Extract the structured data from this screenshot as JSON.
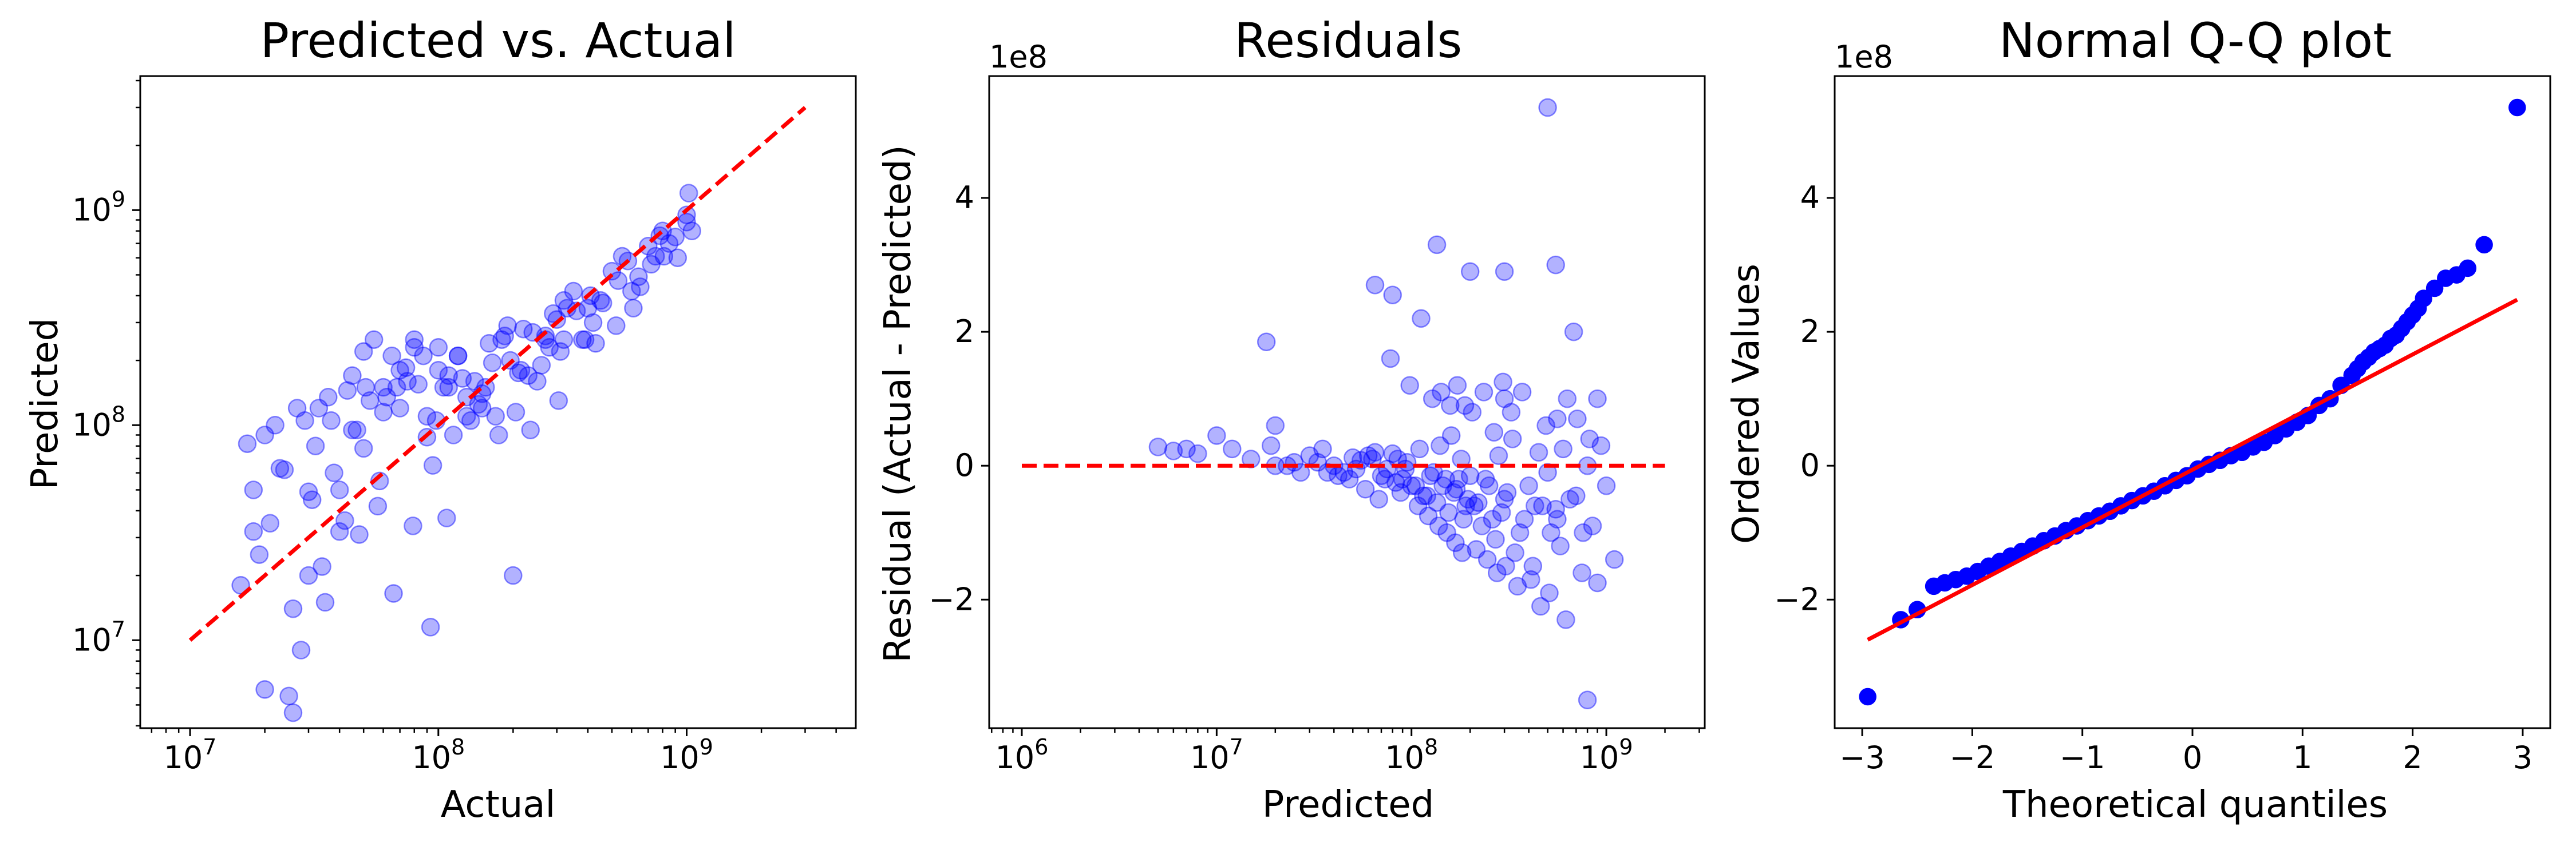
{
  "colors": {
    "points": "#0000ff",
    "reference_line": "#ff0000",
    "axes": "#000000",
    "background": "#ffffff"
  },
  "chart_data": [
    {
      "type": "scatter",
      "title": "Predicted vs. Actual",
      "xlabel": "Actual",
      "ylabel": "Predicted",
      "xscale": "log",
      "yscale": "log",
      "xlim": [
        6300000.0,
        4800000000.0
      ],
      "ylim": [
        3900000.0,
        4200000000.0
      ],
      "xticks": [
        {
          "value": 10000000.0,
          "base": "10",
          "exp": "7"
        },
        {
          "value": 100000000.0,
          "base": "10",
          "exp": "8"
        },
        {
          "value": 1000000000.0,
          "base": "10",
          "exp": "9"
        }
      ],
      "yticks": [
        {
          "value": 10000000.0,
          "base": "10",
          "exp": "7"
        },
        {
          "value": 100000000.0,
          "base": "10",
          "exp": "8"
        },
        {
          "value": 1000000000.0,
          "base": "10",
          "exp": "9"
        }
      ],
      "reference_line": {
        "style": "dashed",
        "x": [
          10000000.0,
          3000000000.0
        ],
        "y": [
          10000000.0,
          3000000000.0
        ]
      },
      "grid": false,
      "series": [
        {
          "marker_alpha": 0.3,
          "x": [
            16000000.0,
            17000000.0,
            18000000.0,
            19000000.0,
            20000000.0,
            18000000.0,
            22000000.0,
            25000000.0,
            28000000.0,
            30000000.0,
            35000000.0,
            40000000.0,
            45000000.0,
            50000000.0,
            27000000.0,
            32000000.0,
            26000000.0,
            42000000.0,
            60000000.0,
            24000000.0,
            38000000.0,
            55000000.0,
            70000000.0,
            21000000.0,
            48000000.0,
            90000000.0,
            33000000.0,
            65000000.0,
            80000000.0,
            100000000.0,
            120000000.0,
            150000000.0,
            180000000.0,
            200000000.0,
            250000000.0,
            300000000.0,
            350000000.0,
            400000000.0,
            500000000.0,
            600000000.0,
            700000000.0,
            800000000.0,
            900000000.0,
            1000000000.0,
            45000000.0,
            58000000.0,
            75000000.0,
            95000000.0,
            110000000.0,
            130000000.0,
            160000000.0,
            220000000.0,
            280000000.0,
            320000000.0,
            420000000.0,
            550000000.0,
            650000000.0,
            750000000.0,
            850000000.0,
            1000000000.0,
            30000000.0,
            40000000.0,
            50000000.0,
            60000000.0,
            70000000.0,
            80000000.0,
            90000000.0,
            110000000.0,
            130000000.0,
            150000000.0,
            170000000.0,
            190000000.0,
            210000000.0,
            240000000.0,
            270000000.0,
            310000000.0,
            360000000.0,
            410000000.0,
            460000000.0,
            520000000.0,
            580000000.0,
            640000000.0,
            720000000.0,
            810000000.0,
            920000000.0,
            1050000000.0,
            23000000.0,
            29000000.0,
            36000000.0,
            43000000.0,
            51000000.0,
            62000000.0,
            74000000.0,
            87000000.0,
            100000000.0,
            120000000.0,
            140000000.0,
            165000000.0,
            195000000.0,
            230000000.0,
            270000000.0,
            320000000.0,
            380000000.0,
            450000000.0,
            155000000.0,
            205000000.0,
            105000000.0,
            260000000.0,
            330000000.0,
            125000000.0,
            185000000.0,
            98000000.0,
            37000000.0,
            53000000.0,
            68000000.0,
            83000000.0,
            115000000.0,
            145000000.0,
            215000000.0,
            290000000.0,
            390000000.0,
            530000000.0,
            780000000.0,
            20000000.0,
            26000000.0,
            31000000.0,
            34000000.0,
            47000000.0,
            57000000.0,
            66000000.0,
            79000000.0,
            93000000.0,
            108000000.0,
            135000000.0,
            175000000.0,
            235000000.0,
            305000000.0,
            430000000.0,
            610000000.0,
            1020000000.0
          ],
          "y": [
            18000000.0,
            82000000.0,
            50000000.0,
            25000000.0,
            90000000.0,
            32000000.0,
            100000000.0,
            5500000.0,
            9000000.0,
            20000000.0,
            15000000.0,
            50000000.0,
            170000000.0,
            220000000.0,
            120000000.0,
            80000000.0,
            14000000.0,
            36000000.0,
            150000000.0,
            62000000.0,
            60000000.0,
            250000000.0,
            120000000.0,
            35000000.0,
            31000000.0,
            88000000.0,
            120000000.0,
            210000000.0,
            230000000.0,
            180000000.0,
            210000000.0,
            140000000.0,
            250000000.0,
            20000000.0,
            160000000.0,
            310000000.0,
            420000000.0,
            350000000.0,
            520000000.0,
            420000000.0,
            680000000.0,
            800000000.0,
            750000000.0,
            950000000.0,
            95000000.0,
            55000000.0,
            160000000.0,
            65000000.0,
            170000000.0,
            110000000.0,
            240000000.0,
            280000000.0,
            230000000.0,
            380000000.0,
            300000000.0,
            610000000.0,
            440000000.0,
            610000000.0,
            700000000.0,
            880000000.0,
            49000000.0,
            32000000.0,
            78000000.0,
            115000000.0,
            180000000.0,
            250000000.0,
            110000000.0,
            150000000.0,
            135000000.0,
            120000000.0,
            110000000.0,
            290000000.0,
            175000000.0,
            270000000.0,
            250000000.0,
            220000000.0,
            340000000.0,
            400000000.0,
            370000000.0,
            290000000.0,
            580000000.0,
            490000000.0,
            560000000.0,
            610000000.0,
            600000000.0,
            800000000.0,
            63000000.0,
            105000000.0,
            135000000.0,
            145000000.0,
            150000000.0,
            135000000.0,
            185000000.0,
            210000000.0,
            230000000.0,
            210000000.0,
            160000000.0,
            195000000.0,
            200000000.0,
            170000000.0,
            260000000.0,
            250000000.0,
            250000000.0,
            380000000.0,
            150000000.0,
            115000000.0,
            150000000.0,
            190000000.0,
            350000000.0,
            165000000.0,
            260000000.0,
            105000000.0,
            105000000.0,
            130000000.0,
            150000000.0,
            155000000.0,
            90000000.0,
            125000000.0,
            180000000.0,
            330000000.0,
            250000000.0,
            470000000.0,
            760000000.0,
            5900000.0,
            4600000.0,
            45000000.0,
            22000000.0,
            95000000.0,
            42000000.0,
            16500000.0,
            34000000.0,
            11500000.0,
            37000000.0,
            105000000.0,
            90000000.0,
            95000000.0,
            130000000.0,
            240000000.0,
            350000000.0,
            1200000000.0
          ]
        }
      ]
    },
    {
      "type": "scatter",
      "title": "Residuals",
      "xlabel": "Predicted",
      "ylabel": "Residual (Actual - Predicted)",
      "xscale": "log",
      "yscale": "linear",
      "offset_label": "1e8",
      "xlim": [
        680000.0,
        3200000000.0
      ],
      "ylim": [
        -3.92,
        5.82
      ],
      "y_units": "1e8",
      "xticks": [
        {
          "value": 1000000.0,
          "base": "10",
          "exp": "6"
        },
        {
          "value": 10000000.0,
          "base": "10",
          "exp": "7"
        },
        {
          "value": 100000000.0,
          "base": "10",
          "exp": "8"
        },
        {
          "value": 1000000000.0,
          "base": "10",
          "exp": "9"
        }
      ],
      "yticks": [
        {
          "value": -2,
          "label": "−2"
        },
        {
          "value": 0,
          "label": "0"
        },
        {
          "value": 2,
          "label": "2"
        },
        {
          "value": 4,
          "label": "4"
        }
      ],
      "reference_line": {
        "style": "dashed",
        "x": [
          1000000.0,
          2000000000.0
        ],
        "y": [
          0,
          0
        ]
      },
      "grid": false,
      "series": [
        {
          "marker_alpha": 0.3,
          "x": [
            5000000.0,
            6000000.0,
            7000000.0,
            8000000.0,
            10000000.0,
            12000000.0,
            15000000.0,
            18000000.0,
            20000000.0,
            25000000.0,
            30000000.0,
            35000000.0,
            40000000.0,
            45000000.0,
            50000000.0,
            55000000.0,
            60000000.0,
            65000000.0,
            70000000.0,
            75000000.0,
            80000000.0,
            85000000.0,
            90000000.0,
            95000000.0,
            100000000.0,
            110000000.0,
            120000000.0,
            130000000.0,
            140000000.0,
            150000000.0,
            160000000.0,
            170000000.0,
            180000000.0,
            190000000.0,
            200000000.0,
            220000000.0,
            240000000.0,
            260000000.0,
            280000000.0,
            300000000.0,
            330000000.0,
            360000000.0,
            400000000.0,
            450000000.0,
            500000000.0,
            550000000.0,
            600000000.0,
            700000000.0,
            800000000.0,
            900000000.0,
            1100000000.0,
            20000000.0,
            27000000.0,
            33000000.0,
            42000000.0,
            52000000.0,
            63000000.0,
            73000000.0,
            83000000.0,
            93000000.0,
            105000000.0,
            115000000.0,
            125000000.0,
            135000000.0,
            145000000.0,
            155000000.0,
            165000000.0,
            175000000.0,
            185000000.0,
            195000000.0,
            210000000.0,
            230000000.0,
            250000000.0,
            270000000.0,
            290000000.0,
            310000000.0,
            340000000.0,
            380000000.0,
            420000000.0,
            470000000.0,
            520000000.0,
            580000000.0,
            650000000.0,
            750000000.0,
            850000000.0,
            1000000000.0,
            65000000.0,
            78000000.0,
            98000000.0,
            112000000.0,
            128000000.0,
            142000000.0,
            158000000.0,
            172000000.0,
            188000000.0,
            205000000.0,
            235000000.0,
            265000000.0,
            295000000.0,
            325000000.0,
            370000000.0,
            430000000.0,
            490000000.0,
            560000000.0,
            630000000.0,
            710000000.0,
            820000000.0,
            940000000.0,
            37000000.0,
            48000000.0,
            58000000.0,
            68000000.0,
            88000000.0,
            108000000.0,
            122000000.0,
            138000000.0,
            152000000.0,
            168000000.0,
            182000000.0,
            215000000.0,
            245000000.0,
            275000000.0,
            305000000.0,
            350000000.0,
            410000000.0,
            460000000.0,
            510000000.0,
            560000000.0,
            620000000.0,
            760000000.0,
            900000000.0,
            19000000.0,
            23000000.0,
            135000000.0,
            200000000.0,
            80000000.0,
            300000000.0
          ],
          "y": [
            0.28,
            0.22,
            0.25,
            0.18,
            0.45,
            0.25,
            0.1,
            1.85,
            0.6,
            0.05,
            0.15,
            0.25,
            0.0,
            -0.1,
            0.12,
            0.08,
            0.15,
            0.2,
            -0.15,
            -0.05,
            0.18,
            0.1,
            -0.2,
            0.05,
            -0.3,
            0.25,
            -0.45,
            -0.1,
            0.3,
            -0.2,
            0.45,
            -0.35,
            0.1,
            -0.6,
            -0.15,
            -0.55,
            -0.2,
            -0.8,
            0.15,
            -0.5,
            0.4,
            -1.0,
            -0.3,
            0.2,
            -0.1,
            -0.65,
            0.25,
            -0.45,
            0.0,
            1.0,
            -1.4,
            0.0,
            -0.1,
            0.05,
            -0.15,
            -0.05,
            0.1,
            -0.2,
            -0.25,
            -0.05,
            -0.3,
            -0.45,
            -0.15,
            -0.55,
            -0.3,
            -0.7,
            -0.4,
            -0.2,
            -0.8,
            -0.5,
            -0.6,
            -0.9,
            -0.3,
            -1.1,
            -0.7,
            -0.4,
            -1.3,
            -0.8,
            -1.5,
            -0.6,
            -1.0,
            -1.2,
            -0.5,
            -1.6,
            -0.9,
            -0.3,
            2.7,
            1.6,
            1.2,
            2.2,
            1.0,
            1.1,
            0.9,
            1.2,
            0.9,
            0.8,
            1.1,
            0.5,
            1.25,
            0.8,
            1.1,
            -0.6,
            0.6,
            0.7,
            1.0,
            0.7,
            0.4,
            0.3,
            -0.1,
            -0.2,
            -0.35,
            -0.5,
            -0.4,
            -0.6,
            -0.75,
            -0.9,
            -1.0,
            -1.15,
            -1.3,
            -1.25,
            -1.4,
            -1.6,
            -1.5,
            -1.8,
            -1.7,
            -2.1,
            -1.9,
            -0.8,
            -2.3,
            -1.0,
            -1.75,
            0.3,
            0.0,
            3.3,
            2.9,
            2.55,
            1.0
          ],
          "extra": [
            {
              "x": 500000000.0,
              "y": 5.35
            },
            {
              "x": 800000000.0,
              "y": -3.5
            },
            {
              "x": 300000000.0,
              "y": 2.9
            },
            {
              "x": 550000000.0,
              "y": 3.0
            },
            {
              "x": 680000000.0,
              "y": 2.0
            }
          ]
        }
      ]
    },
    {
      "type": "scatter",
      "title": "Normal Q-Q plot",
      "xlabel": "Theoretical quantiles",
      "ylabel": "Ordered Values",
      "xscale": "linear",
      "yscale": "linear",
      "offset_label": "1e8",
      "xlim": [
        -3.25,
        3.25
      ],
      "ylim": [
        -3.92,
        5.82
      ],
      "y_units": "1e8",
      "xticks": [
        {
          "value": -3,
          "label": "−3"
        },
        {
          "value": -2,
          "label": "−2"
        },
        {
          "value": -1,
          "label": "−1"
        },
        {
          "value": 0,
          "label": "0"
        },
        {
          "value": 1,
          "label": "1"
        },
        {
          "value": 2,
          "label": "2"
        },
        {
          "value": 3,
          "label": "3"
        }
      ],
      "yticks": [
        {
          "value": -2,
          "label": "−2"
        },
        {
          "value": 0,
          "label": "0"
        },
        {
          "value": 2,
          "label": "2"
        },
        {
          "value": 4,
          "label": "4"
        }
      ],
      "reference_line": {
        "style": "solid",
        "x": [
          -2.95,
          2.95
        ],
        "y": [
          -2.6,
          2.48
        ]
      },
      "grid": false,
      "series": [
        {
          "marker_alpha": 1.0,
          "x": [
            -2.95,
            -2.65,
            -2.5,
            -2.35,
            -2.25,
            -2.15,
            -2.05,
            -1.95,
            -1.85,
            -1.75,
            -1.65,
            -1.55,
            -1.45,
            -1.35,
            -1.25,
            -1.15,
            -1.05,
            -0.95,
            -0.85,
            -0.75,
            -0.65,
            -0.55,
            -0.45,
            -0.35,
            -0.25,
            -0.15,
            -0.05,
            0.05,
            0.15,
            0.25,
            0.35,
            0.45,
            0.55,
            0.65,
            0.75,
            0.85,
            0.95,
            1.05,
            1.15,
            1.25,
            1.35,
            1.45,
            1.5,
            1.55,
            1.6,
            1.65,
            1.7,
            1.75,
            1.8,
            1.85,
            1.9,
            1.95,
            2.0,
            2.05,
            2.1,
            2.2,
            2.3,
            2.4,
            2.5,
            2.65,
            2.95
          ],
          "y": [
            -3.45,
            -2.3,
            -2.15,
            -1.8,
            -1.75,
            -1.7,
            -1.65,
            -1.58,
            -1.5,
            -1.43,
            -1.35,
            -1.28,
            -1.2,
            -1.12,
            -1.05,
            -0.97,
            -0.9,
            -0.82,
            -0.75,
            -0.68,
            -0.6,
            -0.52,
            -0.45,
            -0.38,
            -0.3,
            -0.22,
            -0.15,
            -0.05,
            0.02,
            0.08,
            0.15,
            0.2,
            0.28,
            0.35,
            0.45,
            0.55,
            0.65,
            0.75,
            0.9,
            1.0,
            1.2,
            1.35,
            1.45,
            1.55,
            1.62,
            1.7,
            1.75,
            1.8,
            1.9,
            1.95,
            2.05,
            2.15,
            2.25,
            2.35,
            2.5,
            2.65,
            2.8,
            2.85,
            2.95,
            3.3,
            5.35
          ]
        }
      ]
    }
  ]
}
